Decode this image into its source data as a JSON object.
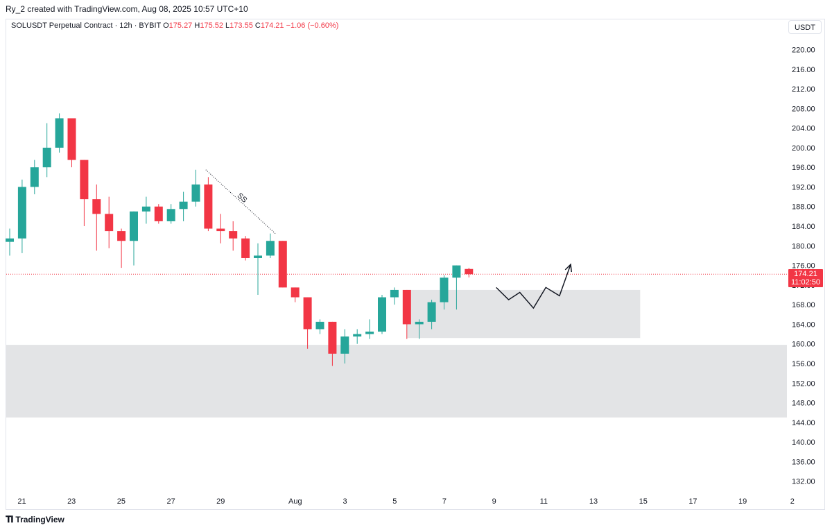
{
  "header": {
    "attribution": "Ry_2 created with TradingView.com, Aug 08, 2025 10:57 UTC+10"
  },
  "legend": {
    "symbol": "SOLUSDT Perpetual Contract · 12h · BYBIT",
    "o_label": "O",
    "o_value": "175.27",
    "h_label": "H",
    "h_value": "175.52",
    "l_label": "L",
    "l_value": "173.55",
    "c_label": "C",
    "c_value": "174.21",
    "change": "−1.06 (−0.60%)"
  },
  "currency": "USDT",
  "price_tag": {
    "price": "174.21",
    "countdown": "11:02:50"
  },
  "footer": {
    "logo_text": "TradingView"
  },
  "colors": {
    "up": "#26a69a",
    "down": "#f23645",
    "zone": "#e3e4e6",
    "text": "#131722"
  },
  "chart_data": {
    "type": "candlestick",
    "interval": "12h",
    "ylim": [
      128.8,
      223
    ],
    "y_ticks": [
      220,
      216,
      212,
      208,
      204,
      200,
      196,
      192,
      188,
      184,
      180,
      176,
      172,
      168,
      164,
      160,
      156,
      152,
      148,
      144,
      140,
      136,
      132
    ],
    "y_tick_labels": [
      "220.00",
      "216.00",
      "212.00",
      "208.00",
      "204.00",
      "200.00",
      "196.00",
      "192.00",
      "188.00",
      "184.00",
      "180.00",
      "176.00",
      "172.00",
      "168.00",
      "164.00",
      "160.00",
      "156.00",
      "152.00",
      "148.00",
      "144.00",
      "140.00",
      "136.00",
      "132.00"
    ],
    "x_ticks": [
      {
        "label": "21",
        "day": 21
      },
      {
        "label": "23",
        "day": 23
      },
      {
        "label": "25",
        "day": 25
      },
      {
        "label": "27",
        "day": 27
      },
      {
        "label": "29",
        "day": 29
      },
      {
        "label": "Aug",
        "day": 32
      },
      {
        "label": "3",
        "day": 34
      },
      {
        "label": "5",
        "day": 36
      },
      {
        "label": "7",
        "day": 38
      },
      {
        "label": "9",
        "day": 40
      },
      {
        "label": "11",
        "day": 42
      },
      {
        "label": "13",
        "day": 44
      },
      {
        "label": "15",
        "day": 46
      },
      {
        "label": "17",
        "day": 48
      },
      {
        "label": "19",
        "day": 50
      },
      {
        "label": "2",
        "day": 52
      }
    ],
    "candles": [
      {
        "o": 180.8,
        "h": 183.5,
        "l": 178.0,
        "c": 181.5
      },
      {
        "o": 181.5,
        "h": 193.5,
        "l": 178.5,
        "c": 192.0
      },
      {
        "o": 192.0,
        "h": 197.5,
        "l": 190.5,
        "c": 196.0
      },
      {
        "o": 196.0,
        "h": 205.0,
        "l": 194.0,
        "c": 200.0
      },
      {
        "o": 200.0,
        "h": 207.0,
        "l": 199.0,
        "c": 206.0
      },
      {
        "o": 206.0,
        "h": 206.0,
        "l": 196.0,
        "c": 197.5
      },
      {
        "o": 197.5,
        "h": 197.5,
        "l": 184.0,
        "c": 189.5
      },
      {
        "o": 189.5,
        "h": 192.5,
        "l": 179.0,
        "c": 186.5
      },
      {
        "o": 186.5,
        "h": 190.0,
        "l": 179.5,
        "c": 183.0
      },
      {
        "o": 183.0,
        "h": 183.5,
        "l": 175.5,
        "c": 181.0
      },
      {
        "o": 181.0,
        "h": 187.0,
        "l": 176.0,
        "c": 187.0
      },
      {
        "o": 187.0,
        "h": 190.0,
        "l": 184.5,
        "c": 188.0
      },
      {
        "o": 188.0,
        "h": 188.5,
        "l": 184.5,
        "c": 185.0
      },
      {
        "o": 185.0,
        "h": 188.5,
        "l": 184.5,
        "c": 187.5
      },
      {
        "o": 187.5,
        "h": 191.0,
        "l": 185.0,
        "c": 189.0
      },
      {
        "o": 189.0,
        "h": 195.5,
        "l": 188.0,
        "c": 192.5
      },
      {
        "o": 192.5,
        "h": 194.0,
        "l": 183.0,
        "c": 183.5
      },
      {
        "o": 183.5,
        "h": 186.5,
        "l": 180.5,
        "c": 183.0
      },
      {
        "o": 183.0,
        "h": 185.0,
        "l": 179.0,
        "c": 181.5
      },
      {
        "o": 181.5,
        "h": 182.0,
        "l": 177.0,
        "c": 177.5
      },
      {
        "o": 177.5,
        "h": 180.5,
        "l": 170.0,
        "c": 178.0
      },
      {
        "o": 178.0,
        "h": 182.5,
        "l": 177.5,
        "c": 181.0
      },
      {
        "o": 181.0,
        "h": 181.0,
        "l": 171.5,
        "c": 171.5
      },
      {
        "o": 171.5,
        "h": 171.5,
        "l": 168.5,
        "c": 169.5
      },
      {
        "o": 169.5,
        "h": 169.5,
        "l": 159.0,
        "c": 163.0
      },
      {
        "o": 163.0,
        "h": 165.0,
        "l": 162.0,
        "c": 164.5
      },
      {
        "o": 164.5,
        "h": 164.5,
        "l": 155.5,
        "c": 158.0
      },
      {
        "o": 158.0,
        "h": 163.0,
        "l": 156.0,
        "c": 161.5
      },
      {
        "o": 161.5,
        "h": 163.0,
        "l": 160.0,
        "c": 162.0
      },
      {
        "o": 162.0,
        "h": 165.0,
        "l": 161.0,
        "c": 162.5
      },
      {
        "o": 162.5,
        "h": 170.0,
        "l": 162.0,
        "c": 169.5
      },
      {
        "o": 169.5,
        "h": 171.5,
        "l": 168.0,
        "c": 171.0
      },
      {
        "o": 171.0,
        "h": 171.0,
        "l": 161.0,
        "c": 164.0
      },
      {
        "o": 164.0,
        "h": 165.0,
        "l": 161.0,
        "c": 164.5
      },
      {
        "o": 164.5,
        "h": 169.0,
        "l": 163.0,
        "c": 168.5
      },
      {
        "o": 168.5,
        "h": 174.0,
        "l": 167.0,
        "c": 173.5
      },
      {
        "o": 173.5,
        "h": 176.0,
        "l": 167.0,
        "c": 176.0
      },
      {
        "o": 175.27,
        "h": 175.52,
        "l": 173.55,
        "c": 174.21
      }
    ],
    "current_price": 174.21,
    "zones": [
      {
        "name": "upper-zone",
        "y_top": 171.0,
        "y_bottom": 161.2,
        "x_start_index": 32.0,
        "x_end_index": 50.8
      },
      {
        "name": "lower-zone",
        "y_top": 159.8,
        "y_bottom": 145.0,
        "x_start_index": -0.5,
        "x_end_index": 80
      }
    ],
    "sweep_line": {
      "label": "SS",
      "from": {
        "i": 15.8,
        "price": 195.5
      },
      "to": {
        "i": 21.4,
        "price": 182.5
      }
    },
    "projection_path": [
      {
        "i": 39.2,
        "price": 171.5
      },
      {
        "i": 40.2,
        "price": 169.0
      },
      {
        "i": 41.1,
        "price": 170.5
      },
      {
        "i": 42.2,
        "price": 167.3
      },
      {
        "i": 43.2,
        "price": 171.5
      },
      {
        "i": 44.3,
        "price": 169.8
      },
      {
        "i": 45.2,
        "price": 176.2
      }
    ]
  }
}
